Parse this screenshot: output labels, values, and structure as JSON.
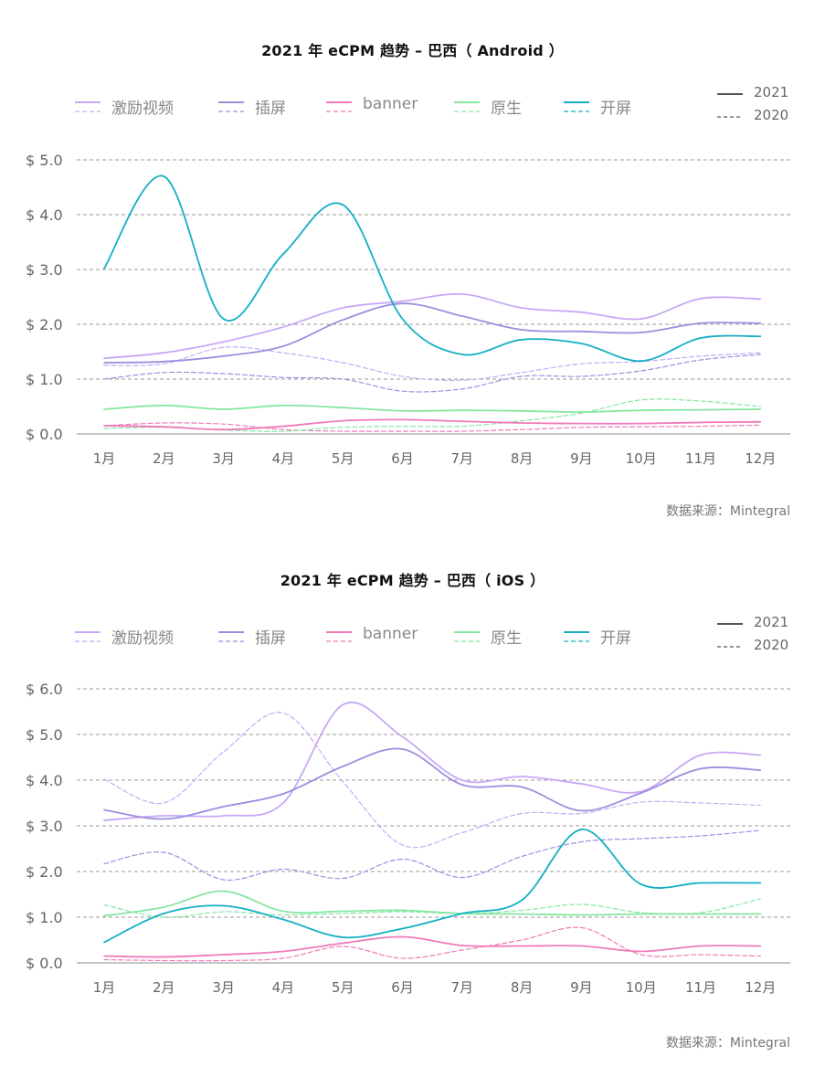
{
  "chart_data": [
    {
      "type": "line",
      "title": "2021 年 eCPM 趋势 – 巴西（ Android ）",
      "xlabel": "",
      "ylabel": "",
      "source": "数据来源：Mintegral",
      "categories": [
        "1月",
        "2月",
        "3月",
        "4月",
        "5月",
        "6月",
        "7月",
        "8月",
        "9月",
        "10月",
        "11月",
        "12月"
      ],
      "yticks": [
        "$ 0.0",
        "$ 1.0",
        "$ 2.0",
        "$ 3.0",
        "$ 4.0",
        "$ 5.0"
      ],
      "ylim": [
        0,
        5
      ],
      "grid": true,
      "legend_position": "top",
      "year_legend": [
        {
          "label": "2021",
          "style": "solid"
        },
        {
          "label": "2020",
          "style": "dashed"
        }
      ],
      "series": [
        {
          "name": "激励视频",
          "color": "#C9A8F5",
          "values_2021": [
            1.38,
            1.48,
            1.68,
            1.95,
            2.3,
            2.42,
            2.55,
            2.3,
            2.22,
            2.1,
            2.47,
            2.46
          ],
          "values_2020": [
            1.25,
            1.28,
            1.58,
            1.48,
            1.3,
            1.05,
            0.98,
            1.12,
            1.28,
            1.32,
            1.42,
            1.48
          ]
        },
        {
          "name": "插屏",
          "color": "#9B8FDE",
          "values_2021": [
            1.3,
            1.32,
            1.42,
            1.6,
            2.08,
            2.38,
            2.15,
            1.9,
            1.87,
            1.85,
            2.02,
            2.02
          ],
          "values_2020": [
            1.0,
            1.12,
            1.1,
            1.03,
            1.0,
            0.78,
            0.82,
            1.05,
            1.05,
            1.15,
            1.35,
            1.45
          ]
        },
        {
          "name": "banner",
          "color": "#F07AB8",
          "values_2021": [
            0.15,
            0.13,
            0.08,
            0.14,
            0.24,
            0.26,
            0.23,
            0.2,
            0.19,
            0.19,
            0.21,
            0.22
          ],
          "values_2020": [
            0.15,
            0.2,
            0.18,
            0.08,
            0.05,
            0.05,
            0.05,
            0.08,
            0.12,
            0.13,
            0.14,
            0.16
          ]
        },
        {
          "name": "原生",
          "color": "#86E6A2",
          "values_2021": [
            0.45,
            0.52,
            0.45,
            0.52,
            0.48,
            0.42,
            0.43,
            0.42,
            0.4,
            0.43,
            0.44,
            0.45
          ],
          "values_2020": [
            0.1,
            0.12,
            0.07,
            0.05,
            0.12,
            0.14,
            0.14,
            0.24,
            0.38,
            0.62,
            0.6,
            0.5
          ]
        },
        {
          "name": "开屏",
          "color": "#14AFC4",
          "values_2021": [
            3.02,
            4.7,
            2.1,
            3.28,
            4.18,
            2.1,
            1.45,
            1.72,
            1.65,
            1.33,
            1.75,
            1.78
          ],
          "values_2020": null
        }
      ]
    },
    {
      "type": "line",
      "title": "2021 年 eCPM 趋势 – 巴西（ iOS ）",
      "xlabel": "",
      "ylabel": "",
      "source": "数据来源：Mintegral",
      "categories": [
        "1月",
        "2月",
        "3月",
        "4月",
        "5月",
        "6月",
        "7月",
        "8月",
        "9月",
        "10月",
        "11月",
        "12月"
      ],
      "yticks": [
        "$ 0.0",
        "$ 1.0",
        "$ 2.0",
        "$ 3.0",
        "$ 4.0",
        "$ 5.0",
        "$ 6.0"
      ],
      "ylim": [
        0,
        6
      ],
      "grid": true,
      "legend_position": "top",
      "year_legend": [
        {
          "label": "2021",
          "style": "solid"
        },
        {
          "label": "2020",
          "style": "dashed"
        }
      ],
      "series": [
        {
          "name": "激励视频",
          "color": "#C9A8F5",
          "values_2021": [
            3.12,
            3.22,
            3.22,
            3.5,
            5.65,
            4.95,
            4.0,
            4.08,
            3.92,
            3.75,
            4.55,
            4.55
          ],
          "values_2020": [
            4.02,
            3.5,
            4.62,
            5.47,
            3.97,
            2.58,
            2.85,
            3.27,
            3.27,
            3.52,
            3.5,
            3.45
          ]
        },
        {
          "name": "插屏",
          "color": "#9B8FDE",
          "values_2021": [
            3.35,
            3.15,
            3.42,
            3.7,
            4.3,
            4.68,
            3.9,
            3.85,
            3.33,
            3.72,
            4.25,
            4.22
          ],
          "values_2020": [
            2.17,
            2.42,
            1.82,
            2.05,
            1.85,
            2.27,
            1.87,
            2.33,
            2.65,
            2.72,
            2.78,
            2.9
          ]
        },
        {
          "name": "banner",
          "color": "#F07AB8",
          "values_2021": [
            0.15,
            0.13,
            0.18,
            0.25,
            0.43,
            0.57,
            0.38,
            0.37,
            0.37,
            0.25,
            0.37,
            0.37
          ],
          "values_2020": [
            0.07,
            0.05,
            0.05,
            0.1,
            0.36,
            0.1,
            0.28,
            0.5,
            0.77,
            0.18,
            0.18,
            0.15
          ]
        },
        {
          "name": "原生",
          "color": "#86E6A2",
          "values_2021": [
            1.03,
            1.22,
            1.57,
            1.13,
            1.13,
            1.15,
            1.08,
            1.07,
            1.05,
            1.07,
            1.07,
            1.07
          ],
          "values_2020": [
            1.27,
            1.0,
            1.12,
            1.05,
            1.08,
            1.12,
            1.08,
            1.15,
            1.28,
            1.1,
            1.1,
            1.4
          ]
        },
        {
          "name": "开屏",
          "color": "#14AFC4",
          "values_2021": [
            0.45,
            1.08,
            1.25,
            0.95,
            0.56,
            0.75,
            1.08,
            1.37,
            2.92,
            1.72,
            1.75,
            1.75
          ],
          "values_2020": null
        }
      ]
    }
  ]
}
